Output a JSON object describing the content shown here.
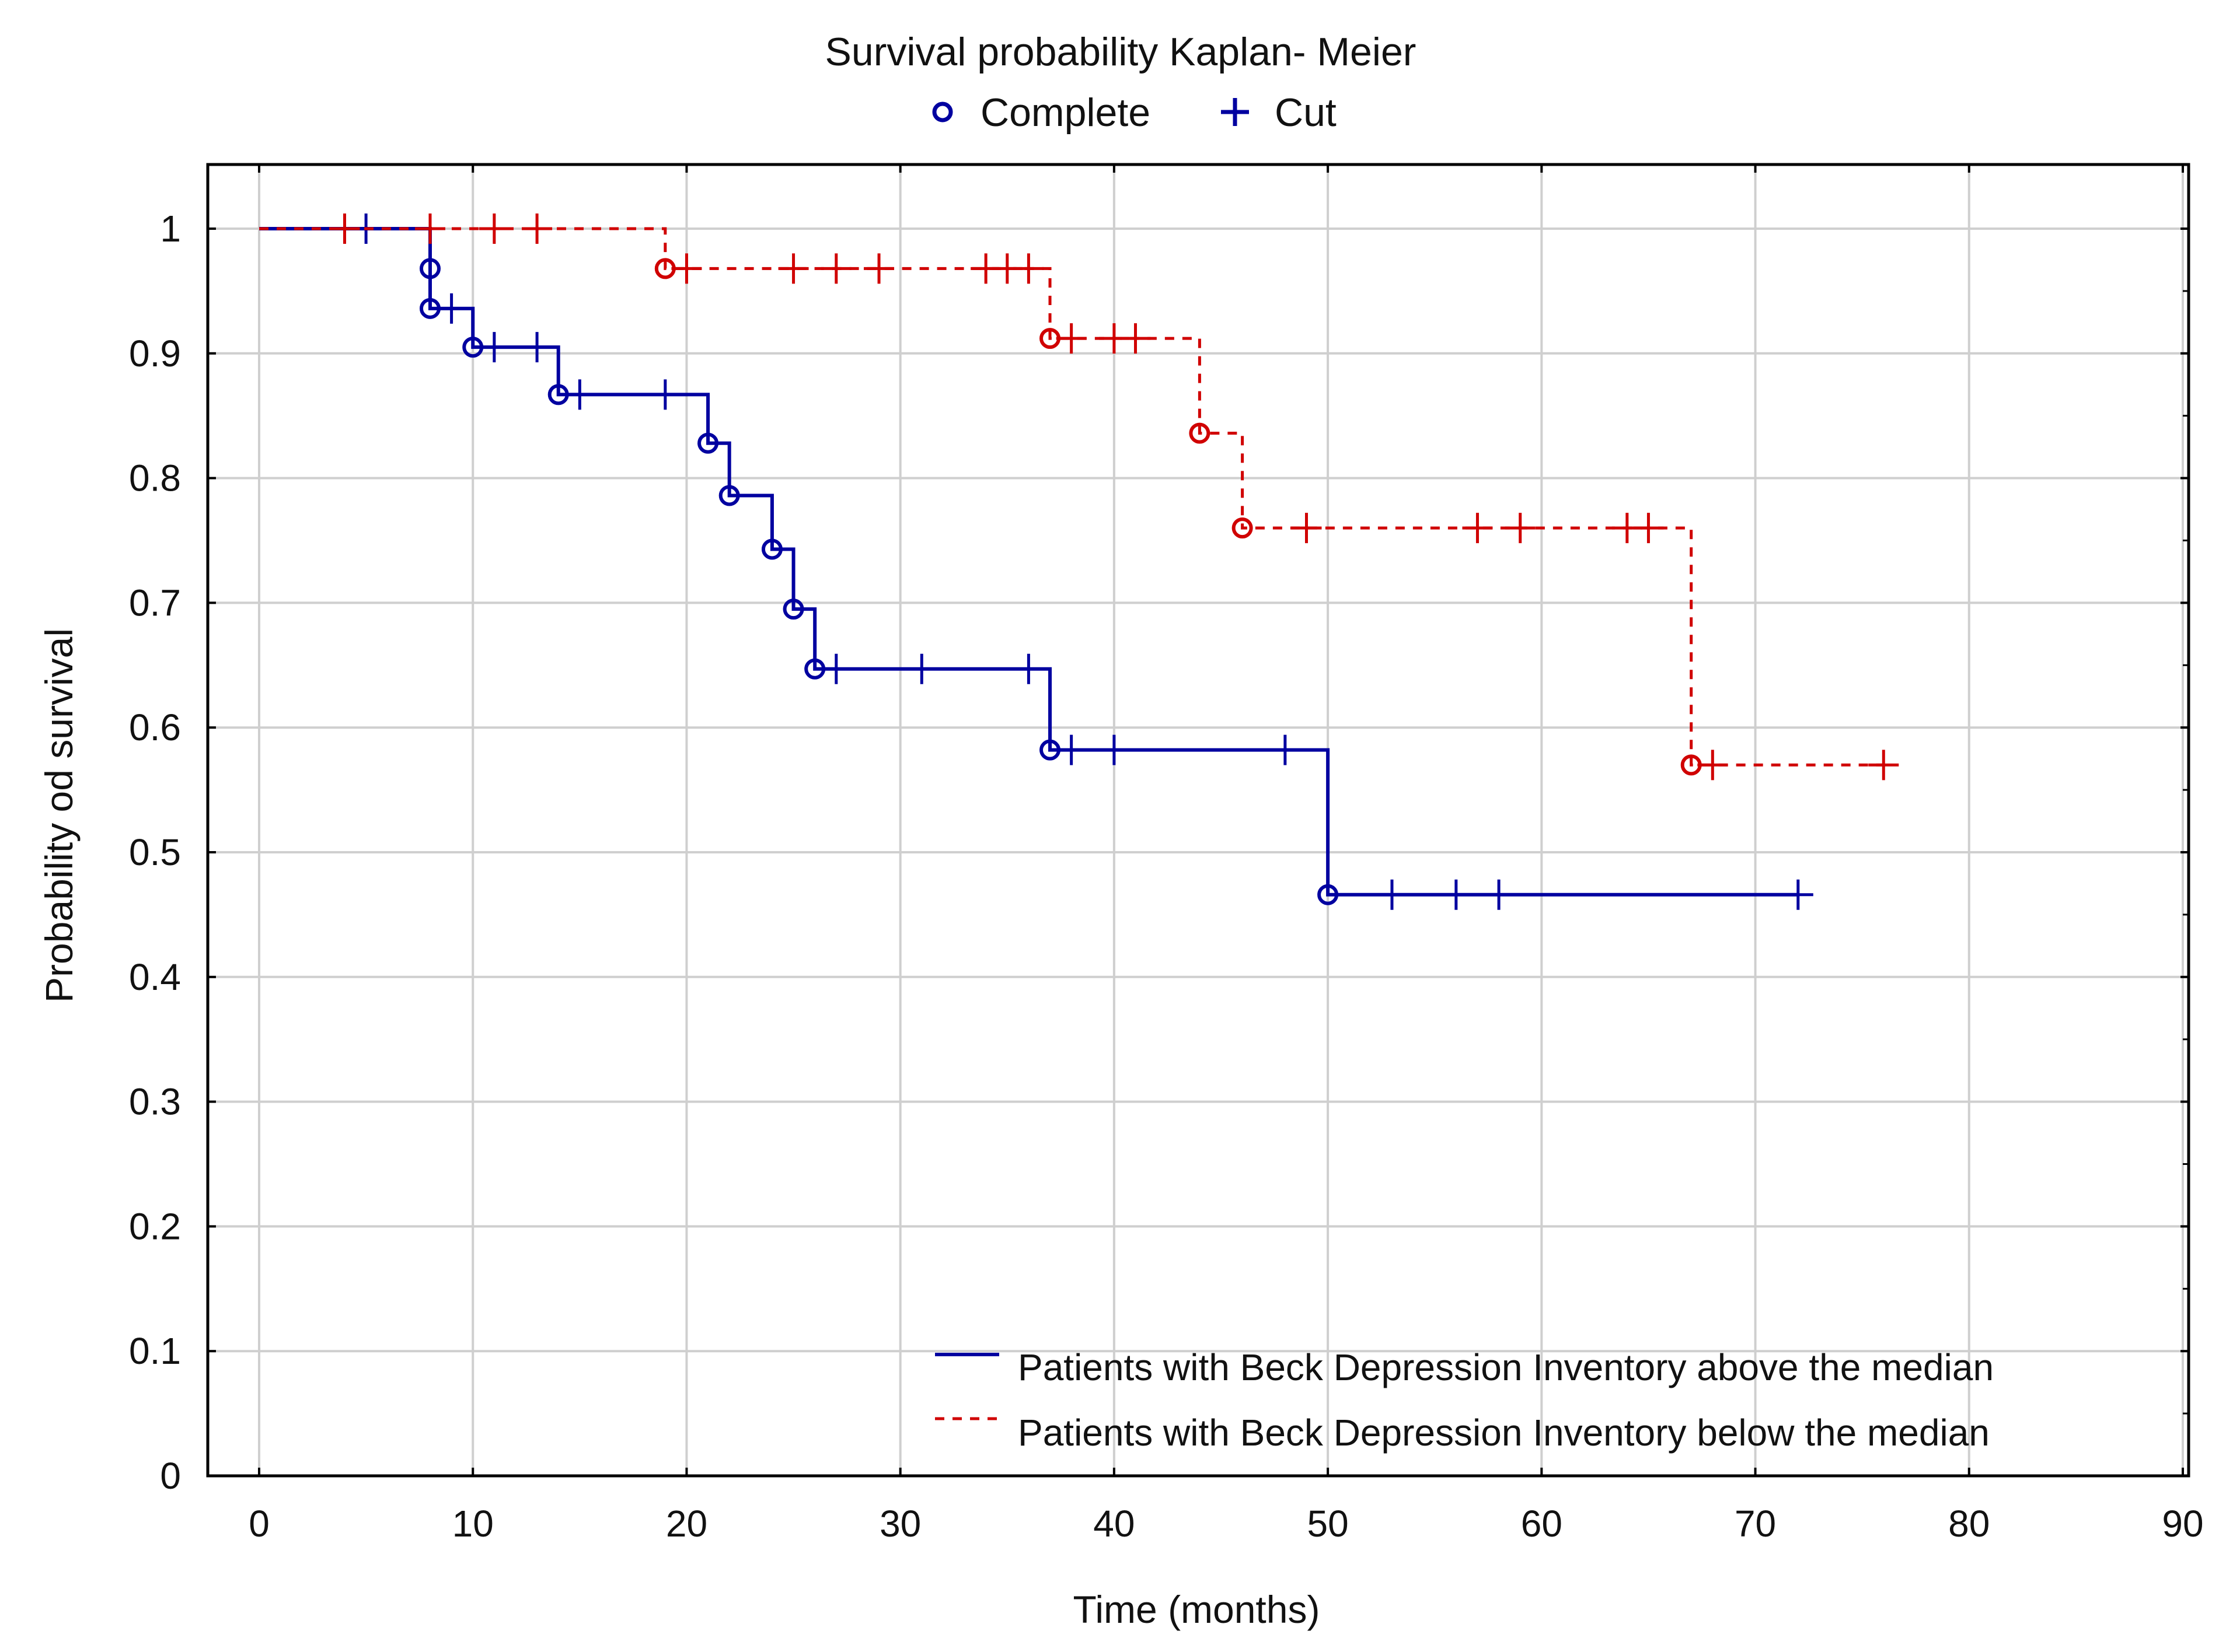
{
  "chart_data": {
    "type": "line",
    "subtype": "kaplan-meier-survival",
    "title": "Survival probability Kaplan- Meier",
    "xlabel": "Time (months)",
    "ylabel": "Probability od survival",
    "xlim": [
      0,
      90
    ],
    "ylim": [
      0,
      1.0
    ],
    "xticks": [
      0,
      10,
      20,
      30,
      40,
      50,
      60,
      70,
      80,
      90
    ],
    "yticks": [
      0,
      0.1,
      0.2,
      0.3,
      0.4,
      0.5,
      0.6,
      0.7,
      0.8,
      0.9,
      1
    ],
    "ytick_labels": [
      "0",
      "0.1",
      "0.2",
      "0.3",
      "0.4",
      "0.5",
      "0.6",
      "0.7",
      "0.8",
      "0.9",
      "1"
    ],
    "grid": true,
    "marker_legend": [
      {
        "symbol": "o",
        "label": "Complete"
      },
      {
        "symbol": "+",
        "label": "Cut"
      }
    ],
    "legend_position": "bottom-right",
    "series": [
      {
        "name": "Patients with Beck Depression Inventory above the median",
        "color": "#0000a0",
        "dash": "solid",
        "steps": [
          [
            0,
            1.0
          ],
          [
            8,
            0.968
          ],
          [
            8,
            0.936
          ],
          [
            10,
            0.905
          ],
          [
            14,
            0.867
          ],
          [
            21,
            0.828
          ],
          [
            22,
            0.786
          ],
          [
            24,
            0.743
          ],
          [
            25,
            0.695
          ],
          [
            26,
            0.647
          ],
          [
            37,
            0.582
          ],
          [
            50,
            0.466
          ]
        ],
        "end_x": 72,
        "complete": [
          [
            8,
            0.968
          ],
          [
            8,
            0.936
          ],
          [
            10,
            0.905
          ],
          [
            14,
            0.867
          ],
          [
            21,
            0.828
          ],
          [
            22,
            0.786
          ],
          [
            24,
            0.743
          ],
          [
            25,
            0.695
          ],
          [
            26,
            0.647
          ],
          [
            37,
            0.582
          ],
          [
            50,
            0.466
          ]
        ],
        "censored": [
          [
            5,
            1.0
          ],
          [
            9,
            0.936
          ],
          [
            11,
            0.905
          ],
          [
            13,
            0.905
          ],
          [
            15,
            0.867
          ],
          [
            19,
            0.867
          ],
          [
            27,
            0.647
          ],
          [
            31,
            0.647
          ],
          [
            36,
            0.647
          ],
          [
            38,
            0.582
          ],
          [
            40,
            0.582
          ],
          [
            48,
            0.582
          ],
          [
            53,
            0.466
          ],
          [
            56,
            0.466
          ],
          [
            58,
            0.466
          ],
          [
            72,
            0.466
          ]
        ]
      },
      {
        "name": "Patients with Beck Depression Inventory below the median",
        "color": "#d00000",
        "dash": "dashed",
        "steps": [
          [
            0,
            1.0
          ],
          [
            19,
            0.968
          ],
          [
            37,
            0.912
          ],
          [
            44,
            0.836
          ],
          [
            46,
            0.76
          ],
          [
            67,
            0.57
          ]
        ],
        "end_x": 76,
        "complete": [
          [
            19,
            0.968
          ],
          [
            37,
            0.912
          ],
          [
            44,
            0.836
          ],
          [
            46,
            0.76
          ],
          [
            67,
            0.57
          ]
        ],
        "censored": [
          [
            4,
            1.0
          ],
          [
            8,
            1.0
          ],
          [
            11,
            1.0
          ],
          [
            13,
            1.0
          ],
          [
            20,
            0.968
          ],
          [
            25,
            0.968
          ],
          [
            27,
            0.968
          ],
          [
            29,
            0.968
          ],
          [
            34,
            0.968
          ],
          [
            35,
            0.968
          ],
          [
            36,
            0.968
          ],
          [
            38,
            0.912
          ],
          [
            40,
            0.912
          ],
          [
            41,
            0.912
          ],
          [
            49,
            0.76
          ],
          [
            57,
            0.76
          ],
          [
            59,
            0.76
          ],
          [
            64,
            0.76
          ],
          [
            65,
            0.76
          ],
          [
            68,
            0.57
          ],
          [
            76,
            0.57
          ]
        ]
      }
    ]
  }
}
